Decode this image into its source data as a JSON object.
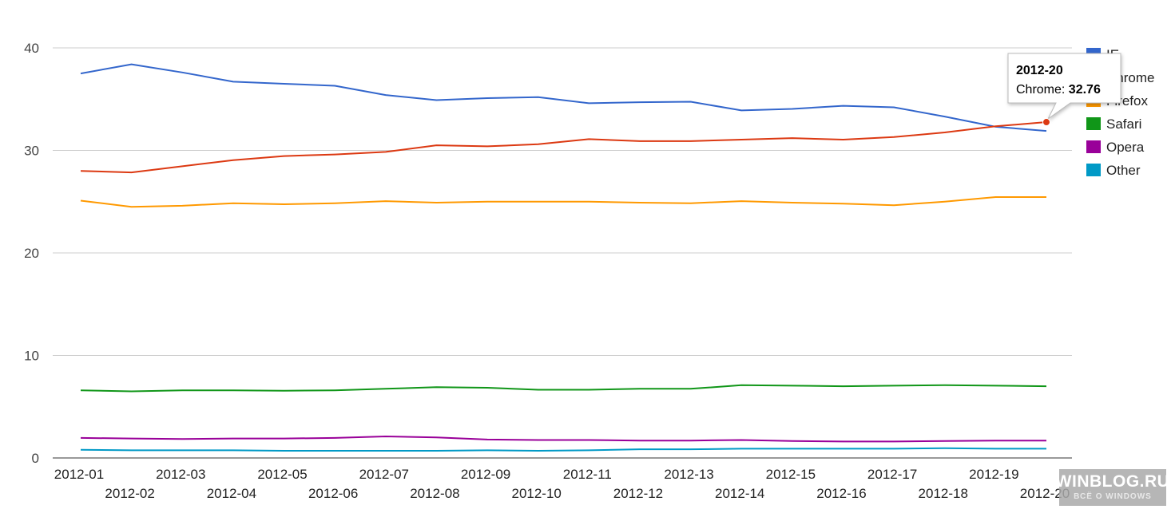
{
  "chart_data": {
    "type": "line",
    "title": "",
    "xlabel": "",
    "ylabel": "",
    "ylim": [
      0,
      40
    ],
    "y_ticks": [
      0,
      10,
      20,
      30,
      40
    ],
    "grid": true,
    "legend_position": "right",
    "categories": [
      "2012-01",
      "2012-02",
      "2012-03",
      "2012-04",
      "2012-05",
      "2012-06",
      "2012-07",
      "2012-08",
      "2012-09",
      "2012-10",
      "2012-11",
      "2012-12",
      "2012-13",
      "2012-14",
      "2012-15",
      "2012-16",
      "2012-17",
      "2012-18",
      "2012-19",
      "2012-20"
    ],
    "series": [
      {
        "name": "IE",
        "color": "#3366cc",
        "values": [
          37.5,
          38.4,
          37.6,
          36.7,
          36.5,
          36.3,
          35.4,
          34.9,
          35.1,
          35.2,
          34.6,
          34.7,
          34.75,
          33.9,
          34.05,
          34.35,
          34.2,
          33.3,
          32.3,
          31.9
        ]
      },
      {
        "name": "Chrome",
        "color": "#dc3912",
        "values": [
          28.0,
          27.85,
          28.45,
          29.05,
          29.45,
          29.6,
          29.85,
          30.5,
          30.4,
          30.6,
          31.1,
          30.9,
          30.9,
          31.05,
          31.2,
          31.05,
          31.3,
          31.75,
          32.35,
          32.76
        ]
      },
      {
        "name": "Firefox",
        "color": "#ff9900",
        "values": [
          25.1,
          24.5,
          24.6,
          24.85,
          24.75,
          24.85,
          25.05,
          24.9,
          25.0,
          25.0,
          25.0,
          24.9,
          24.85,
          25.05,
          24.9,
          24.8,
          24.65,
          25.0,
          25.45,
          25.45
        ]
      },
      {
        "name": "Safari",
        "color": "#109618",
        "values": [
          6.6,
          6.5,
          6.6,
          6.6,
          6.55,
          6.6,
          6.75,
          6.9,
          6.85,
          6.65,
          6.65,
          6.75,
          6.75,
          7.1,
          7.05,
          7.0,
          7.05,
          7.1,
          7.05,
          7.0
        ]
      },
      {
        "name": "Opera",
        "color": "#990099",
        "values": [
          1.95,
          1.9,
          1.85,
          1.9,
          1.9,
          1.95,
          2.1,
          2.0,
          1.8,
          1.75,
          1.75,
          1.7,
          1.7,
          1.75,
          1.65,
          1.6,
          1.6,
          1.65,
          1.7,
          1.7
        ]
      },
      {
        "name": "Other",
        "color": "#0099c6",
        "values": [
          0.8,
          0.75,
          0.75,
          0.75,
          0.7,
          0.7,
          0.7,
          0.7,
          0.75,
          0.7,
          0.75,
          0.85,
          0.85,
          0.9,
          0.9,
          0.9,
          0.9,
          0.95,
          0.9,
          0.9
        ]
      }
    ],
    "tooltip": {
      "title": "2012-20",
      "series": "Chrome",
      "label": "Chrome: ",
      "value": "32.76"
    }
  },
  "watermark": {
    "main": "WINBLOG.RU",
    "sub": "ВСЁ О WINDOWS"
  }
}
